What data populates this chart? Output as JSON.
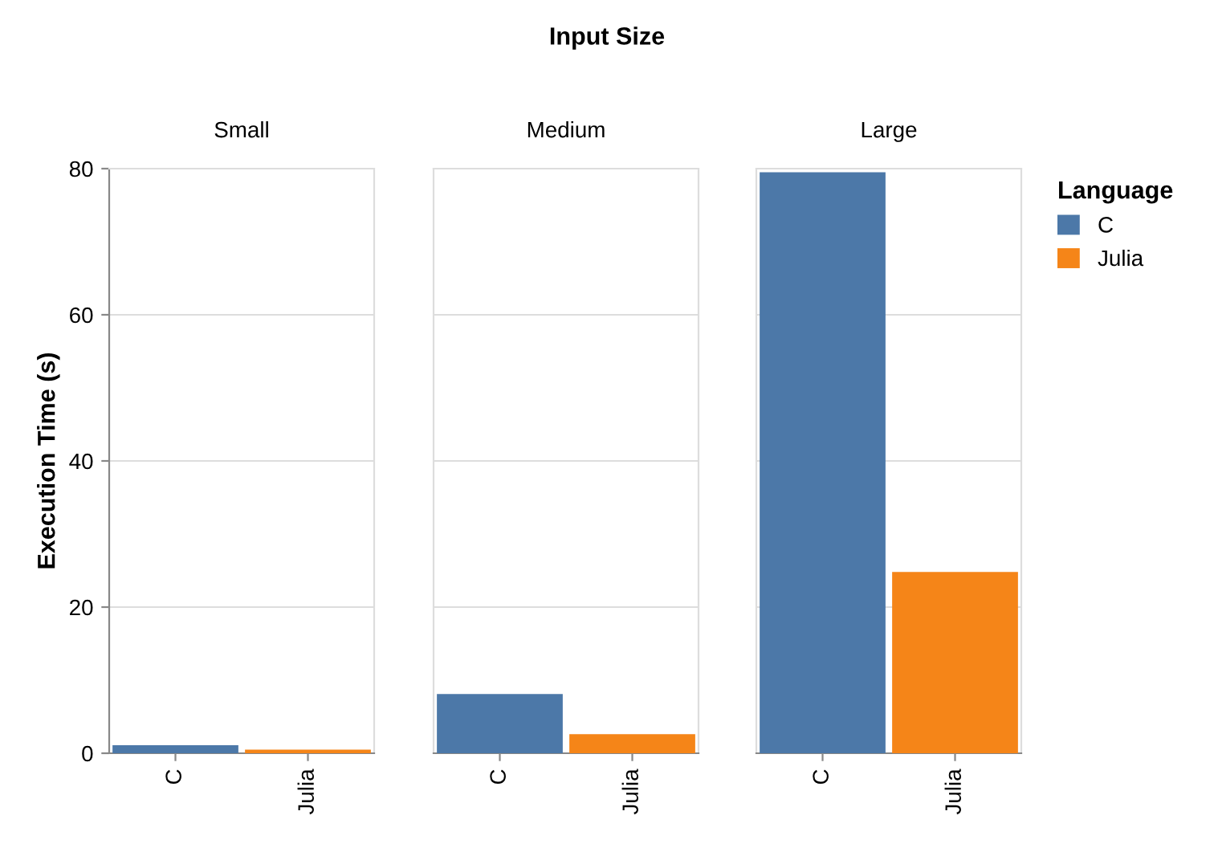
{
  "chart_data": [
    {
      "type": "bar",
      "title": "Small",
      "annotations": [
        "Input Size"
      ],
      "ylabel": "Execution Time (s)",
      "categories": [
        "C",
        "Julia"
      ],
      "series": [
        {
          "name": "C",
          "color": "#4c78a8",
          "values": [
            1.1,
            null
          ]
        },
        {
          "name": "Julia",
          "color": "#f58518",
          "values": [
            null,
            0.5
          ]
        }
      ],
      "ylim": [
        0,
        80
      ],
      "yticks": [
        0,
        20,
        40,
        60,
        80
      ],
      "grid": "y",
      "legend": "right",
      "legend_title": "Language"
    },
    {
      "type": "bar",
      "title": "Medium",
      "categories": [
        "C",
        "Julia"
      ],
      "values": [
        8.1,
        2.6
      ],
      "colors": [
        "#4c78a8",
        "#f58518"
      ],
      "ylim": [
        0,
        80
      ],
      "yticks": [
        0,
        20,
        40,
        60,
        80
      ],
      "grid": "y",
      "tick_labels": "x"
    },
    {
      "type": "bar",
      "title": "Large",
      "categories": [
        "C",
        "Julia"
      ],
      "values": [
        79.5,
        24.8
      ],
      "colors": [
        "#4c78a8",
        "#f58518"
      ],
      "ylim": [
        0,
        80
      ],
      "yticks": [
        0,
        20,
        40,
        60,
        80
      ],
      "grid": "y",
      "tick_labels": "x"
    }
  ]
}
